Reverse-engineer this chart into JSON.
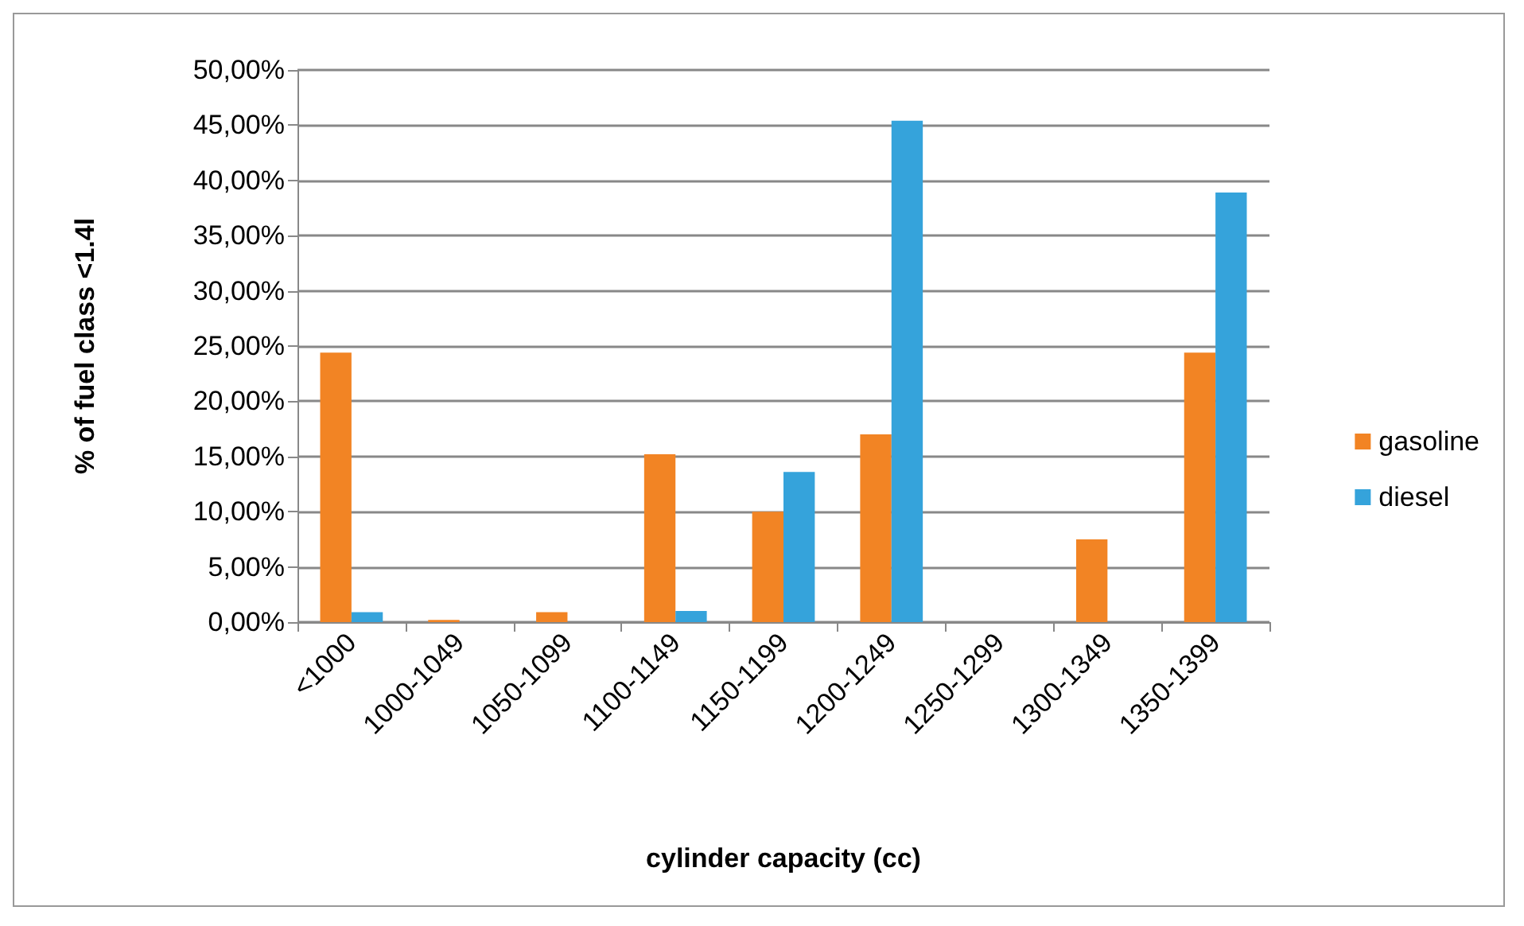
{
  "chart_data": {
    "type": "bar",
    "xlabel": "cylinder capacity (cc)",
    "ylabel": "% of fuel class <1.4l",
    "categories": [
      "<1000",
      "1000-1049",
      "1050-1099",
      "1100-1149",
      "1150-1199",
      "1200-1249",
      "1250-1299",
      "1300-1349",
      "1350-1399"
    ],
    "series": [
      {
        "name": "gasoline",
        "color": "#f28424",
        "values": [
          24.4,
          0.2,
          0.9,
          15.2,
          10.0,
          17.0,
          0,
          7.5,
          24.4
        ]
      },
      {
        "name": "diesel",
        "color": "#35a3db",
        "values": [
          0.9,
          0,
          0,
          1.0,
          13.6,
          45.4,
          0,
          0,
          38.9
        ]
      }
    ],
    "ylim": [
      0,
      50
    ],
    "yticks": [
      {
        "value": 0,
        "label": "0,00%"
      },
      {
        "value": 5,
        "label": "5,00%"
      },
      {
        "value": 10,
        "label": "10,00%"
      },
      {
        "value": 15,
        "label": "15,00%"
      },
      {
        "value": 20,
        "label": "20,00%"
      },
      {
        "value": 25,
        "label": "25,00%"
      },
      {
        "value": 30,
        "label": "30,00%"
      },
      {
        "value": 35,
        "label": "35,00%"
      },
      {
        "value": 40,
        "label": "40,00%"
      },
      {
        "value": 45,
        "label": "45,00%"
      },
      {
        "value": 50,
        "label": "50,00%"
      }
    ],
    "grid": "y",
    "legend": "right"
  }
}
